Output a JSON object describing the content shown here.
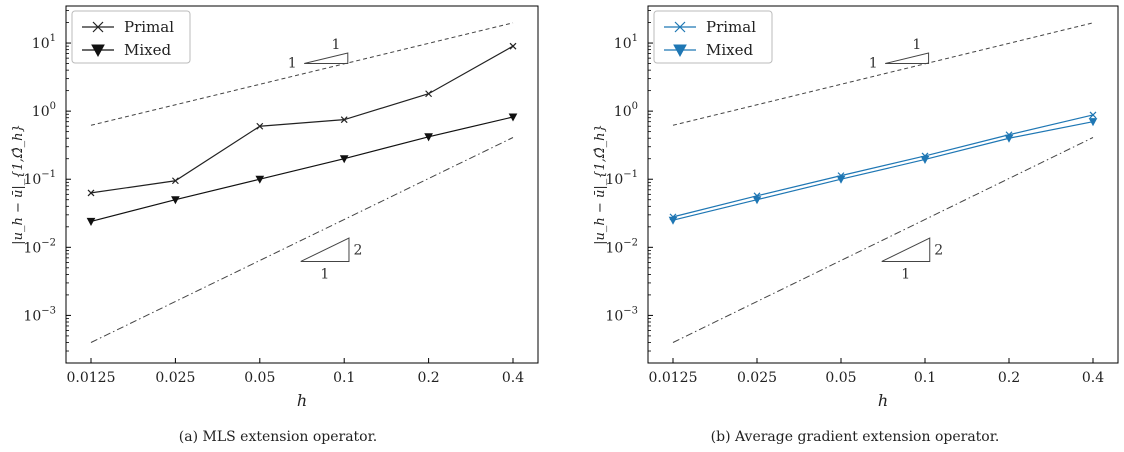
{
  "chart_data": [
    {
      "type": "line",
      "caption": "(a) MLS extension operator.",
      "xlabel": "h",
      "ylabel": "|u_h − ū|_{1,Ω̂_h}",
      "xscale": "log2",
      "yscale": "log10",
      "xlim": [
        0.0125,
        0.4
      ],
      "ylim": [
        0.0002,
        35
      ],
      "grid": false,
      "legend": "top-left",
      "x_ticks": [
        0.0125,
        0.025,
        0.05,
        0.1,
        0.2,
        0.4
      ],
      "x_tick_labels": [
        "0.0125",
        "0.025",
        "0.05",
        "0.1",
        "0.2",
        "0.4"
      ],
      "y_ticks": [
        {
          "base": "10",
          "exp": "−3",
          "value": 0.001
        },
        {
          "base": "10",
          "exp": "−2",
          "value": 0.01
        },
        {
          "base": "10",
          "exp": "−1",
          "value": 0.1
        },
        {
          "base": "10",
          "exp": "0",
          "value": 1
        },
        {
          "base": "10",
          "exp": "1",
          "value": 10
        }
      ],
      "series": [
        {
          "name": "Primal",
          "marker": "x",
          "color": "#222222",
          "x": [
            0.0125,
            0.025,
            0.05,
            0.1,
            0.2,
            0.4
          ],
          "y": [
            0.063,
            0.095,
            0.6,
            0.75,
            1.8,
            9.0
          ]
        },
        {
          "name": "Mixed",
          "marker": "triangle-down",
          "color": "#111111",
          "x": [
            0.0125,
            0.025,
            0.05,
            0.1,
            0.2,
            0.4
          ],
          "y": [
            0.024,
            0.05,
            0.1,
            0.2,
            0.42,
            0.82
          ]
        }
      ],
      "reference_lines": [
        {
          "style": "dashed",
          "slope": 1,
          "x": [
            0.0125,
            0.4
          ],
          "y": [
            0.62,
            19.8
          ]
        },
        {
          "style": "dashdot",
          "slope": 2,
          "x": [
            0.0125,
            0.4
          ],
          "y": [
            0.0004,
            0.41
          ]
        }
      ],
      "slope_triangles": [
        {
          "rise_label": "1",
          "run_label": "1",
          "order": 1,
          "x0": 0.072,
          "x1": 0.103,
          "y0": 5.0
        },
        {
          "rise_label": "2",
          "run_label": "1",
          "order": 2,
          "x0": 0.07,
          "x1": 0.104,
          "y0": 0.0062
        }
      ]
    },
    {
      "type": "line",
      "caption": "(b) Average gradient extension operator.",
      "xlabel": "h",
      "ylabel": "|u_h − ū|_{1,Ω̂_h}",
      "xscale": "log2",
      "yscale": "log10",
      "xlim": [
        0.0125,
        0.4
      ],
      "ylim": [
        0.0002,
        35
      ],
      "grid": false,
      "legend": "top-left",
      "x_ticks": [
        0.0125,
        0.025,
        0.05,
        0.1,
        0.2,
        0.4
      ],
      "x_tick_labels": [
        "0.0125",
        "0.025",
        "0.05",
        "0.1",
        "0.2",
        "0.4"
      ],
      "y_ticks": [
        {
          "base": "10",
          "exp": "−3",
          "value": 0.001
        },
        {
          "base": "10",
          "exp": "−2",
          "value": 0.01
        },
        {
          "base": "10",
          "exp": "−1",
          "value": 0.1
        },
        {
          "base": "10",
          "exp": "0",
          "value": 1
        },
        {
          "base": "10",
          "exp": "1",
          "value": 10
        }
      ],
      "series": [
        {
          "name": "Primal",
          "marker": "x",
          "color": "#1f77b4",
          "x": [
            0.0125,
            0.025,
            0.05,
            0.1,
            0.2,
            0.4
          ],
          "y": [
            0.028,
            0.057,
            0.113,
            0.22,
            0.45,
            0.88
          ]
        },
        {
          "name": "Mixed",
          "marker": "triangle-down",
          "color": "#1f77b4",
          "x": [
            0.0125,
            0.025,
            0.05,
            0.1,
            0.2,
            0.4
          ],
          "y": [
            0.025,
            0.05,
            0.1,
            0.195,
            0.4,
            0.7
          ]
        }
      ],
      "reference_lines": [
        {
          "style": "dashed",
          "slope": 1,
          "x": [
            0.0125,
            0.4
          ],
          "y": [
            0.62,
            19.8
          ]
        },
        {
          "style": "dashdot",
          "slope": 2,
          "x": [
            0.0125,
            0.4
          ],
          "y": [
            0.0004,
            0.41
          ]
        }
      ],
      "slope_triangles": [
        {
          "rise_label": "1",
          "run_label": "1",
          "order": 1,
          "x0": 0.072,
          "x1": 0.103,
          "y0": 5.0
        },
        {
          "rise_label": "2",
          "run_label": "1",
          "order": 2,
          "x0": 0.07,
          "x1": 0.104,
          "y0": 0.0062
        }
      ]
    }
  ]
}
